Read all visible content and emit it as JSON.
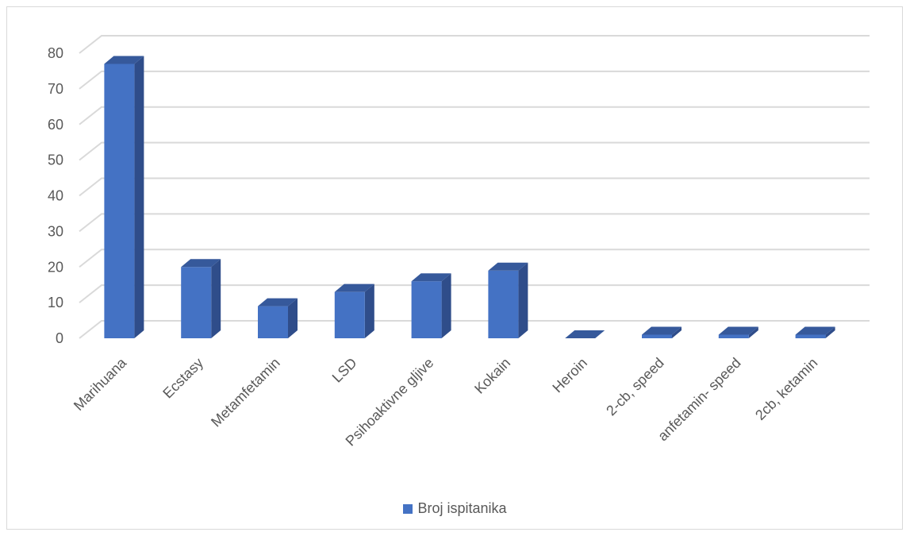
{
  "chart_data": {
    "type": "bar",
    "style": "3d-column",
    "categories": [
      "Marihuana",
      "Ecstasy",
      "Metamfetamin",
      "LSD",
      "Psihoaktivne gljive",
      "Kokain",
      "Heroin",
      "2-cb, speed",
      "anfetamin- speed",
      "2cb, ketamin"
    ],
    "series": [
      {
        "name": "Broj ispitanika",
        "values": [
          77,
          20,
          9,
          13,
          16,
          19,
          0,
          1,
          1,
          1
        ]
      }
    ],
    "yticks": [
      0,
      10,
      20,
      30,
      40,
      50,
      60,
      70,
      80
    ],
    "ylim": [
      0,
      80
    ],
    "grid": true,
    "legend": "bottom",
    "colors": {
      "front": "#4472c4",
      "side": "#2f4d8a",
      "top": "#36599b",
      "grid": "#d9d9d9",
      "text": "#595959"
    }
  }
}
